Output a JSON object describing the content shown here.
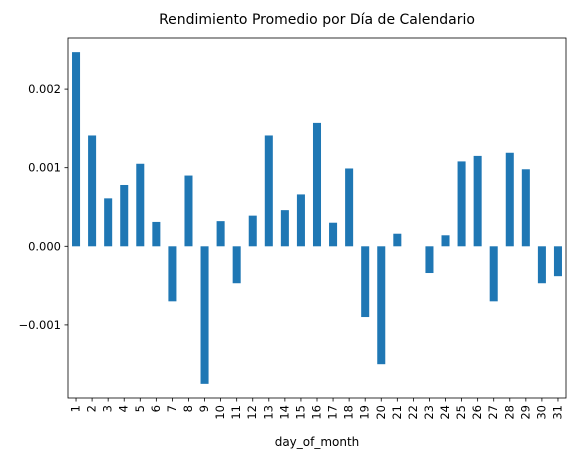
{
  "chart_data": {
    "type": "bar",
    "title": "Rendimiento Promedio por Día de Calendario",
    "xlabel": "day_of_month",
    "ylabel": "",
    "categories": [
      "1",
      "2",
      "3",
      "4",
      "5",
      "6",
      "7",
      "8",
      "9",
      "10",
      "11",
      "12",
      "13",
      "14",
      "15",
      "16",
      "17",
      "18",
      "19",
      "20",
      "21",
      "22",
      "23",
      "24",
      "25",
      "26",
      "27",
      "28",
      "29",
      "30",
      "31"
    ],
    "values": [
      0.00247,
      0.00141,
      0.00061,
      0.00078,
      0.00105,
      0.00031,
      -0.0007,
      0.0009,
      -0.00175,
      0.00032,
      -0.00047,
      0.00039,
      0.00141,
      0.00046,
      0.00066,
      0.00157,
      0.0003,
      0.00099,
      -0.0009,
      -0.0015,
      0.00016,
      0.0,
      -0.00034,
      0.00014,
      0.00108,
      0.00115,
      -0.0007,
      0.00119,
      0.00098,
      -0.00047,
      -0.00038
    ],
    "ylim": [
      -0.00193,
      0.00265
    ],
    "yticks": [
      -0.001,
      0.0,
      0.001,
      0.002
    ],
    "ytick_labels": [
      "−0.001",
      "0.000",
      "0.001",
      "0.002"
    ],
    "bar_color": "#1f77b4",
    "grid": false,
    "legend": "none"
  }
}
